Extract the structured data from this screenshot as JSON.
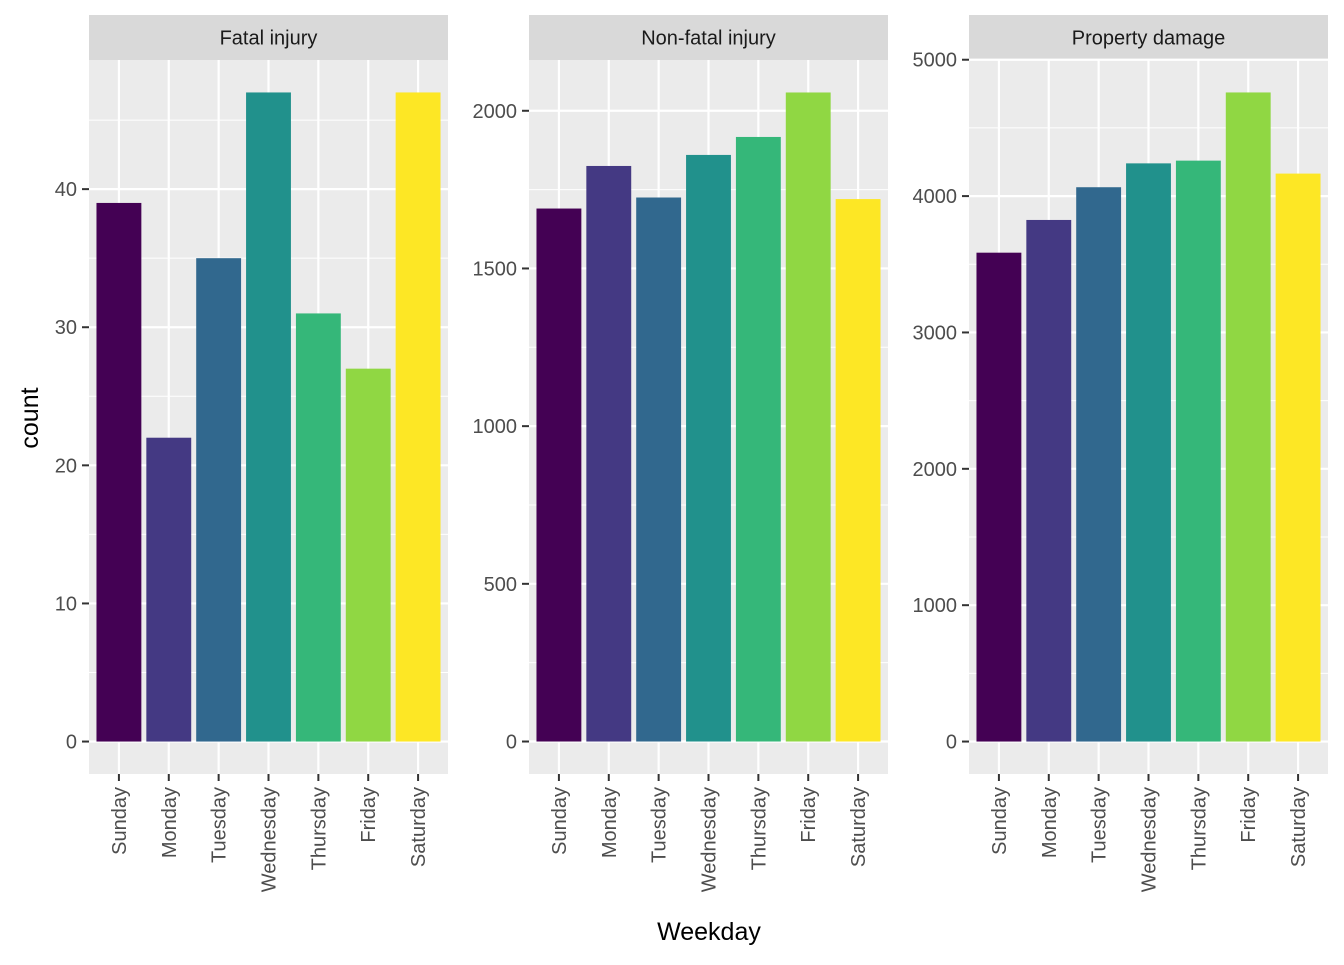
{
  "chart_data": {
    "type": "bar",
    "xlabel": "Weekday",
    "ylabel": "count",
    "categories": [
      "Sunday",
      "Monday",
      "Tuesday",
      "Wednesday",
      "Thursday",
      "Friday",
      "Saturday"
    ],
    "colors": [
      "#440154",
      "#443983",
      "#31688e",
      "#21918c",
      "#35b779",
      "#90d743",
      "#fde725"
    ],
    "grid": true,
    "legend": "none",
    "panels": [
      {
        "title": "Fatal injury",
        "values": [
          39,
          22,
          35,
          47,
          31,
          27,
          47
        ],
        "ylim": [
          -2.35,
          49.35
        ],
        "yticks": [
          0,
          10,
          20,
          30,
          40
        ],
        "ytick_labels": [
          "0",
          "10",
          "20",
          "30",
          "40"
        ]
      },
      {
        "title": "Non-fatal injury",
        "values": [
          1690,
          1825,
          1725,
          1860,
          1917,
          2058,
          1720
        ],
        "ylim": [
          -103,
          2161
        ],
        "yticks": [
          0,
          500,
          1000,
          1500,
          2000
        ],
        "ytick_labels": [
          "0",
          "500",
          "1000",
          "1500",
          "2000"
        ]
      },
      {
        "title": "Property damage",
        "values": [
          3585,
          3825,
          4065,
          4240,
          4260,
          4760,
          4165
        ],
        "ylim": [
          -238,
          4998
        ],
        "yticks": [
          0,
          1000,
          2000,
          3000,
          4000,
          5000
        ],
        "ytick_labels": [
          "0",
          "1000",
          "2000",
          "3000",
          "4000",
          "5000"
        ]
      }
    ]
  }
}
